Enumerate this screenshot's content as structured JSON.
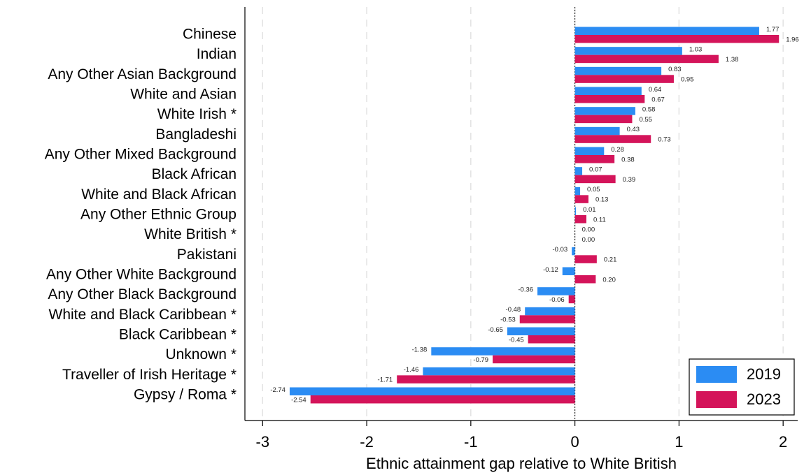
{
  "chart_data": {
    "type": "bar",
    "orientation": "horizontal",
    "xlabel": "Ethnic attainment gap relative to White British",
    "categories": [
      "Chinese",
      "Indian",
      "Any Other Asian Background",
      "White and Asian",
      "White Irish *",
      "Bangladeshi",
      "Any Other Mixed Background",
      "Black African",
      "White and Black African",
      "Any Other Ethnic Group",
      "White British *",
      "Pakistani",
      "Any Other White Background",
      "Any Other Black Background",
      "White and Black Caribbean *",
      "Black Caribbean *",
      "Unknown *",
      "Traveller of Irish Heritage *",
      "Gypsy / Roma *"
    ],
    "series": [
      {
        "name": "2019",
        "color": "#2b8cf3",
        "values": [
          1.77,
          1.03,
          0.83,
          0.64,
          0.58,
          0.43,
          0.28,
          0.07,
          0.05,
          0.01,
          0,
          -0.03,
          -0.12,
          -0.36,
          -0.48,
          -0.65,
          -1.38,
          -1.46,
          -2.74
        ],
        "value_labels": [
          "1.77",
          "1.03",
          "0.83",
          "0.64",
          "0.58",
          "0.43",
          "0.28",
          "0.07",
          "0.05",
          "0.01",
          "0.00",
          "-0.03",
          "-0.12",
          "-0.36",
          "-0.48",
          "-0.65",
          "-1.38",
          "-1.46",
          "-2.74"
        ]
      },
      {
        "name": "2023",
        "color": "#d4145a",
        "values": [
          1.96,
          1.38,
          0.95,
          0.67,
          0.55,
          0.73,
          0.38,
          0.39,
          0.13,
          0.11,
          0,
          0.21,
          0.2,
          -0.06,
          -0.53,
          -0.45,
          -0.79,
          -1.71,
          -2.54
        ],
        "value_labels": [
          "1.96",
          "1.38",
          "0.95",
          "0.67",
          "0.55",
          "0.73",
          "0.38",
          "0.39",
          "0.13",
          "0.11",
          "0.00",
          "0.21",
          "0.20",
          "-0.06",
          "-0.53",
          "-0.45",
          "-0.79",
          "-1.71",
          "-2.54"
        ]
      }
    ],
    "xlim": [
      -3.17,
      2.14
    ],
    "xticks": [
      -3,
      -2,
      -1,
      0,
      1,
      2
    ],
    "grid": true,
    "legend": "lower right"
  }
}
